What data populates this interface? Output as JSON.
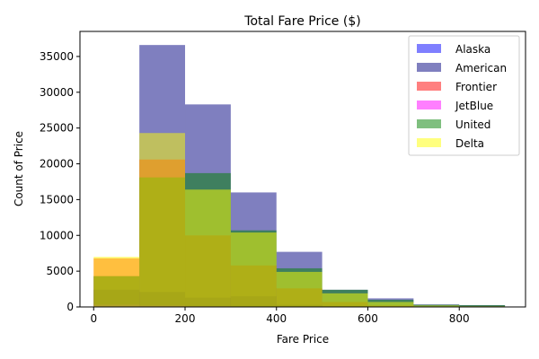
{
  "chart_data": {
    "type": "bar",
    "title": "Total Fare Price ($)",
    "xlabel": "Fare Price",
    "ylabel": "Count of Price",
    "xlim": [
      -30,
      945
    ],
    "ylim": [
      0,
      38500
    ],
    "xticks": [
      0,
      200,
      400,
      600,
      800
    ],
    "yticks": [
      0,
      5000,
      10000,
      15000,
      20000,
      25000,
      30000,
      35000
    ],
    "grid": false,
    "legend_position": "top-right",
    "bin_edges": [
      0,
      100,
      200,
      300,
      400,
      500,
      600,
      700,
      800,
      900
    ],
    "series": [
      {
        "name": "Alaska",
        "color": "#0000ff",
        "alpha": 0.5,
        "values": [
          2400,
          2100,
          1300,
          1500,
          300,
          100,
          50,
          20,
          10
        ]
      },
      {
        "name": "American",
        "color": "#000080",
        "alpha": 0.5,
        "values": [
          4300,
          36600,
          28300,
          16000,
          7700,
          2400,
          1200,
          350,
          250
        ]
      },
      {
        "name": "Frontier",
        "color": "#ff0000",
        "alpha": 0.5,
        "values": [
          6800,
          20600,
          10000,
          5800,
          2600,
          700,
          200,
          50,
          20
        ]
      },
      {
        "name": "JetBlue",
        "color": "#ff00ff",
        "alpha": 0.5,
        "values": [
          300,
          200,
          100,
          50,
          30,
          10,
          5,
          0,
          0
        ]
      },
      {
        "name": "United",
        "color": "#008000",
        "alpha": 0.5,
        "values": [
          4300,
          18100,
          18700,
          10700,
          5400,
          2400,
          1000,
          300,
          250
        ]
      },
      {
        "name": "Delta",
        "color": "#ffff00",
        "alpha": 0.5,
        "values": [
          7000,
          24300,
          16400,
          10400,
          4900,
          1900,
          700,
          200,
          100
        ]
      }
    ]
  }
}
